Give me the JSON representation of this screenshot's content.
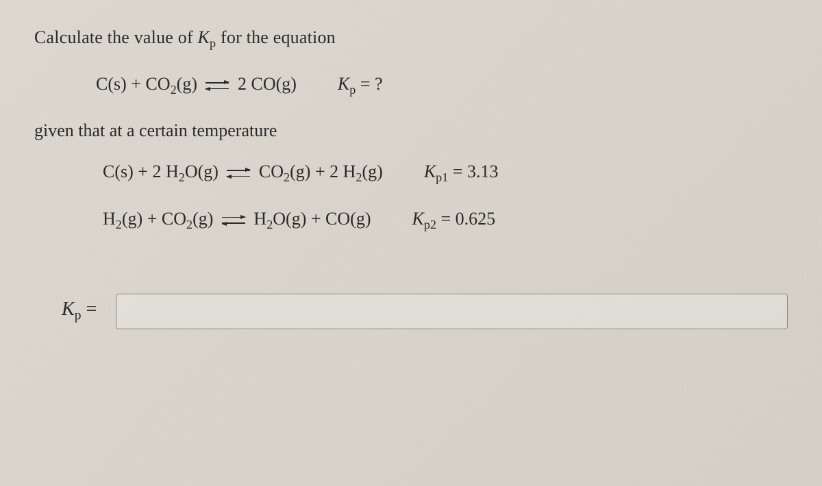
{
  "background_color": "#d8d4cb",
  "text_color": "#2a2a2a",
  "font_family": "Georgia, Times New Roman, serif",
  "prompt": {
    "before": "Calculate the value of ",
    "var": "K",
    "varsub": "p",
    "after": " for the equation"
  },
  "target_equation": {
    "lhs_1": "C(s) + CO",
    "lhs_1_sub": "2",
    "lhs_2": "(g)",
    "rhs": "2 CO(g)",
    "kp_label_var": "K",
    "kp_label_sub": "p",
    "kp_value": " = ?"
  },
  "given_text": "given that at a certain temperature",
  "reaction1": {
    "lhs_a": "C(s) + 2 H",
    "lhs_a_sub": "2",
    "lhs_b": "O(g)",
    "rhs_a": "CO",
    "rhs_a_sub": "2",
    "rhs_b": "(g) + 2 H",
    "rhs_b_sub": "2",
    "rhs_c": "(g)",
    "k_var": "K",
    "k_sub": "p1",
    "k_val": " = 3.13"
  },
  "reaction2": {
    "lhs_a": "H",
    "lhs_a_sub": "2",
    "lhs_b": "(g) + CO",
    "lhs_b_sub": "2",
    "lhs_c": "(g)",
    "rhs_a": "H",
    "rhs_a_sub": "2",
    "rhs_b": "O(g) + CO(g)",
    "k_var": "K",
    "k_sub": "p2",
    "k_val": " = 0.625"
  },
  "answer": {
    "label_var": "K",
    "label_sub": "p",
    "label_eq": " =",
    "value": "",
    "placeholder": ""
  }
}
